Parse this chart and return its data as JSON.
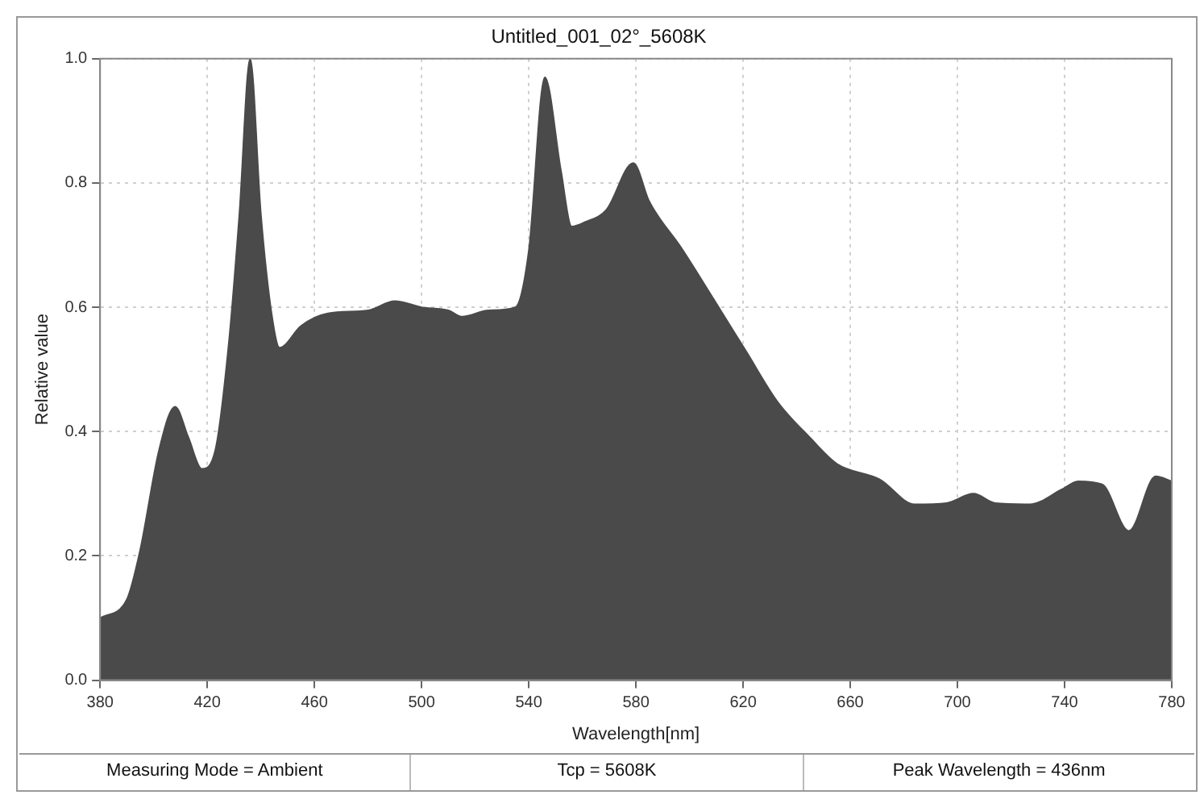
{
  "chart_data": {
    "type": "area",
    "title": "Untitled_001_02°_5608K",
    "xlabel": "Wavelength[nm]",
    "ylabel": "Relative value",
    "x": [
      380,
      390,
      395,
      402,
      408,
      413,
      418,
      423,
      428,
      432,
      436,
      440,
      444,
      447,
      455,
      465,
      480,
      490,
      500,
      510,
      515,
      525,
      535,
      540,
      546,
      552,
      556,
      561,
      569,
      579,
      585,
      597,
      609,
      621,
      633,
      645,
      655,
      671,
      684,
      696,
      706,
      714,
      727,
      739,
      745,
      754,
      764,
      774,
      780
    ],
    "series": [
      {
        "color": "#4a4a4a",
        "values": [
          0.1,
          0.13,
          0.21,
          0.37,
          0.44,
          0.39,
          0.34,
          0.37,
          0.54,
          0.75,
          1.0,
          0.75,
          0.59,
          0.535,
          0.57,
          0.59,
          0.595,
          0.61,
          0.6,
          0.595,
          0.585,
          0.595,
          0.6,
          0.69,
          0.97,
          0.82,
          0.73,
          0.737,
          0.757,
          0.832,
          0.77,
          0.695,
          0.613,
          0.53,
          0.447,
          0.39,
          0.348,
          0.323,
          0.283,
          0.285,
          0.3,
          0.285,
          0.283,
          0.307,
          0.32,
          0.315,
          0.24,
          0.328,
          0.32
        ]
      }
    ],
    "xlim": [
      380,
      780
    ],
    "xticks": [
      380,
      420,
      460,
      500,
      540,
      580,
      620,
      660,
      700,
      740,
      780
    ],
    "ylim": [
      0,
      1
    ],
    "yticks": [
      {
        "value": 0,
        "label": "0.0"
      },
      0.2,
      0.4,
      0.6,
      0.8,
      {
        "value": 1,
        "label": "1.0"
      }
    ],
    "grid": true,
    "legend": false,
    "annotations": [
      "Measuring Mode = Ambient",
      "Tcp = 5608K",
      "Peak Wavelength = 436nm"
    ]
  }
}
